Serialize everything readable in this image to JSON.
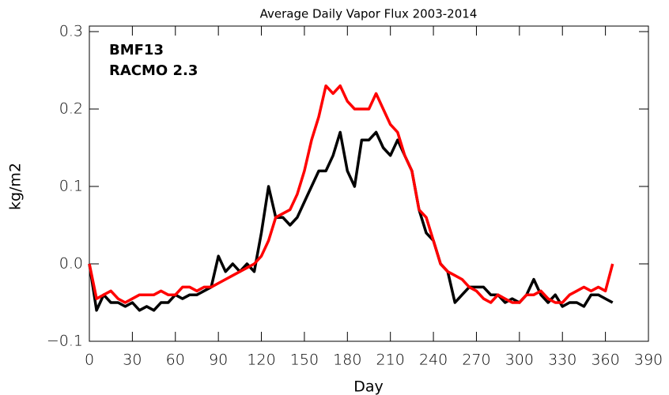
{
  "chart_data": {
    "type": "line",
    "title": "Average Daily Vapor Flux 2003-2014",
    "xlabel": "Day",
    "ylabel": "kg/m2",
    "x": [
      0,
      5,
      10,
      15,
      20,
      25,
      30,
      35,
      40,
      45,
      50,
      55,
      60,
      65,
      70,
      75,
      80,
      85,
      90,
      95,
      100,
      105,
      110,
      115,
      120,
      125,
      130,
      135,
      140,
      145,
      150,
      155,
      160,
      165,
      170,
      175,
      180,
      185,
      190,
      195,
      200,
      205,
      210,
      215,
      220,
      225,
      230,
      235,
      240,
      245,
      250,
      255,
      260,
      265,
      270,
      275,
      280,
      285,
      290,
      295,
      300,
      305,
      310,
      315,
      320,
      325,
      330,
      335,
      340,
      345,
      350,
      355,
      360,
      365
    ],
    "series": [
      {
        "name": "BMF13",
        "color": "#000000",
        "values": [
          0.0,
          -0.06,
          -0.04,
          -0.05,
          -0.05,
          -0.055,
          -0.05,
          -0.06,
          -0.055,
          -0.06,
          -0.05,
          -0.05,
          -0.04,
          -0.045,
          -0.04,
          -0.04,
          -0.035,
          -0.03,
          0.01,
          -0.01,
          0.0,
          -0.01,
          0.0,
          -0.01,
          0.04,
          0.1,
          0.06,
          0.06,
          0.05,
          0.06,
          0.08,
          0.1,
          0.12,
          0.12,
          0.14,
          0.17,
          0.12,
          0.1,
          0.16,
          0.16,
          0.17,
          0.15,
          0.14,
          0.16,
          0.14,
          0.12,
          0.07,
          0.04,
          0.03,
          0.0,
          -0.01,
          -0.05,
          -0.04,
          -0.03,
          -0.03,
          -0.03,
          -0.04,
          -0.04,
          -0.05,
          -0.045,
          -0.05,
          -0.04,
          -0.02,
          -0.04,
          -0.05,
          -0.04,
          -0.055,
          -0.05,
          -0.05,
          -0.055,
          -0.04,
          -0.04,
          -0.045,
          -0.05
        ]
      },
      {
        "name": "RACMO 2.3",
        "color": "#ff0000",
        "values": [
          0.0,
          -0.045,
          -0.04,
          -0.035,
          -0.045,
          -0.05,
          -0.045,
          -0.04,
          -0.04,
          -0.04,
          -0.035,
          -0.04,
          -0.04,
          -0.03,
          -0.03,
          -0.035,
          -0.03,
          -0.03,
          -0.025,
          -0.02,
          -0.015,
          -0.01,
          -0.005,
          0.0,
          0.01,
          0.03,
          0.06,
          0.065,
          0.07,
          0.09,
          0.12,
          0.16,
          0.19,
          0.23,
          0.22,
          0.23,
          0.21,
          0.2,
          0.2,
          0.2,
          0.22,
          0.2,
          0.18,
          0.17,
          0.14,
          0.12,
          0.07,
          0.06,
          0.03,
          0.0,
          -0.01,
          -0.015,
          -0.02,
          -0.03,
          -0.035,
          -0.045,
          -0.05,
          -0.04,
          -0.045,
          -0.05,
          -0.05,
          -0.04,
          -0.04,
          -0.035,
          -0.045,
          -0.05,
          -0.05,
          -0.04,
          -0.035,
          -0.03,
          -0.035,
          -0.03,
          -0.035,
          0.0
        ]
      }
    ],
    "xlim": [
      0,
      390
    ],
    "xticks": [
      0,
      30,
      60,
      90,
      120,
      150,
      180,
      210,
      240,
      270,
      300,
      330,
      360,
      390
    ],
    "ylim": [
      -0.1,
      0.3
    ],
    "yticks": [
      {
        "value": -0.1,
        "label": "−0.1"
      },
      {
        "value": 0,
        "label": "0.0"
      },
      0.1,
      0.2,
      0.3
    ],
    "legend": "upper left",
    "grid": false
  }
}
